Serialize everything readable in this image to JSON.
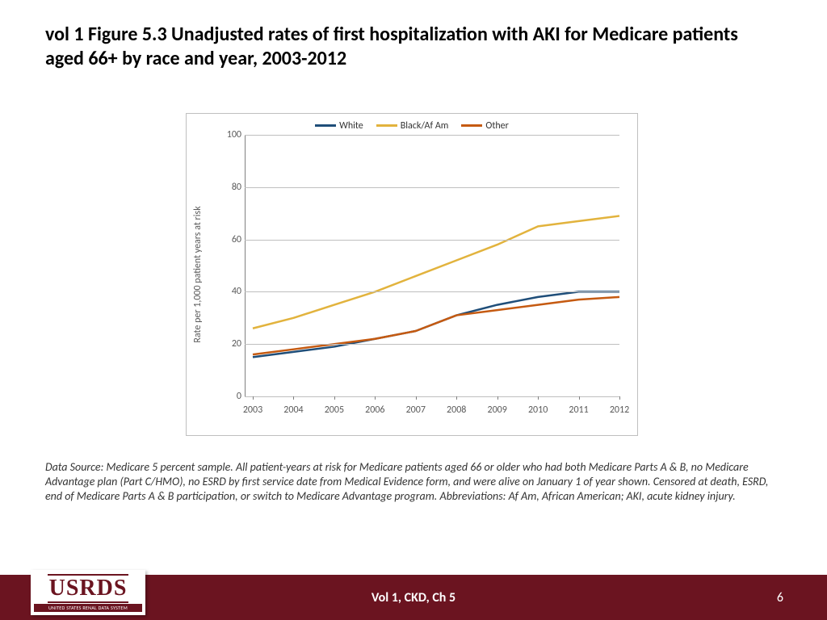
{
  "title": "vol 1 Figure 5.3  Unadjusted rates of first hospitalization with AKI for Medicare patients aged 66+ by race and year, 2003-2012",
  "chart": {
    "type": "line",
    "y_axis_title": "Rate per 1,000 patient years at risk",
    "ylim": [
      0,
      100
    ],
    "ytick_step": 20,
    "y_ticks": [
      0,
      20,
      40,
      60,
      80,
      100
    ],
    "x_categories": [
      "2003",
      "2004",
      "2005",
      "2006",
      "2007",
      "2008",
      "2009",
      "2010",
      "2011",
      "2012"
    ],
    "grid_color": "#bfbfbf",
    "axis_text_color": "#595959",
    "background_color": "#ffffff",
    "border_color": "#bfbfbf",
    "line_width": 2.5,
    "label_fontsize": 12,
    "series": [
      {
        "name": "White",
        "color": "#1f4e79",
        "values": [
          15,
          17,
          19,
          22,
          25,
          31,
          35,
          38,
          40,
          40
        ]
      },
      {
        "name": "Black/Af Am",
        "color": "#e2b33d",
        "values": [
          26,
          30,
          35,
          40,
          46,
          52,
          58,
          65,
          67,
          69
        ]
      },
      {
        "name": "Other",
        "color": "#c55a11",
        "values": [
          16,
          18,
          20,
          22,
          25,
          31,
          33,
          35,
          37,
          38
        ]
      }
    ]
  },
  "caption": "Data Source: Medicare 5 percent sample. All patient-years at risk for Medicare patients aged 66 or older who had both Medicare Parts A & B, no Medicare Advantage plan (Part C/HMO), no ESRD by first service date from Medical Evidence form, and were alive on January 1 of year shown. Censored at death, ESRD, end of Medicare Parts A & B participation, or switch to Medicare Advantage program. Abbreviations: Af Am, African American; AKI, acute kidney injury.",
  "footer": {
    "bar_color": "#6b1420",
    "logo_main": "USRDS",
    "logo_sub": "UNITED STATES RENAL DATA SYSTEM",
    "center_text": "Vol 1, CKD, Ch 5",
    "page_number": "6"
  }
}
